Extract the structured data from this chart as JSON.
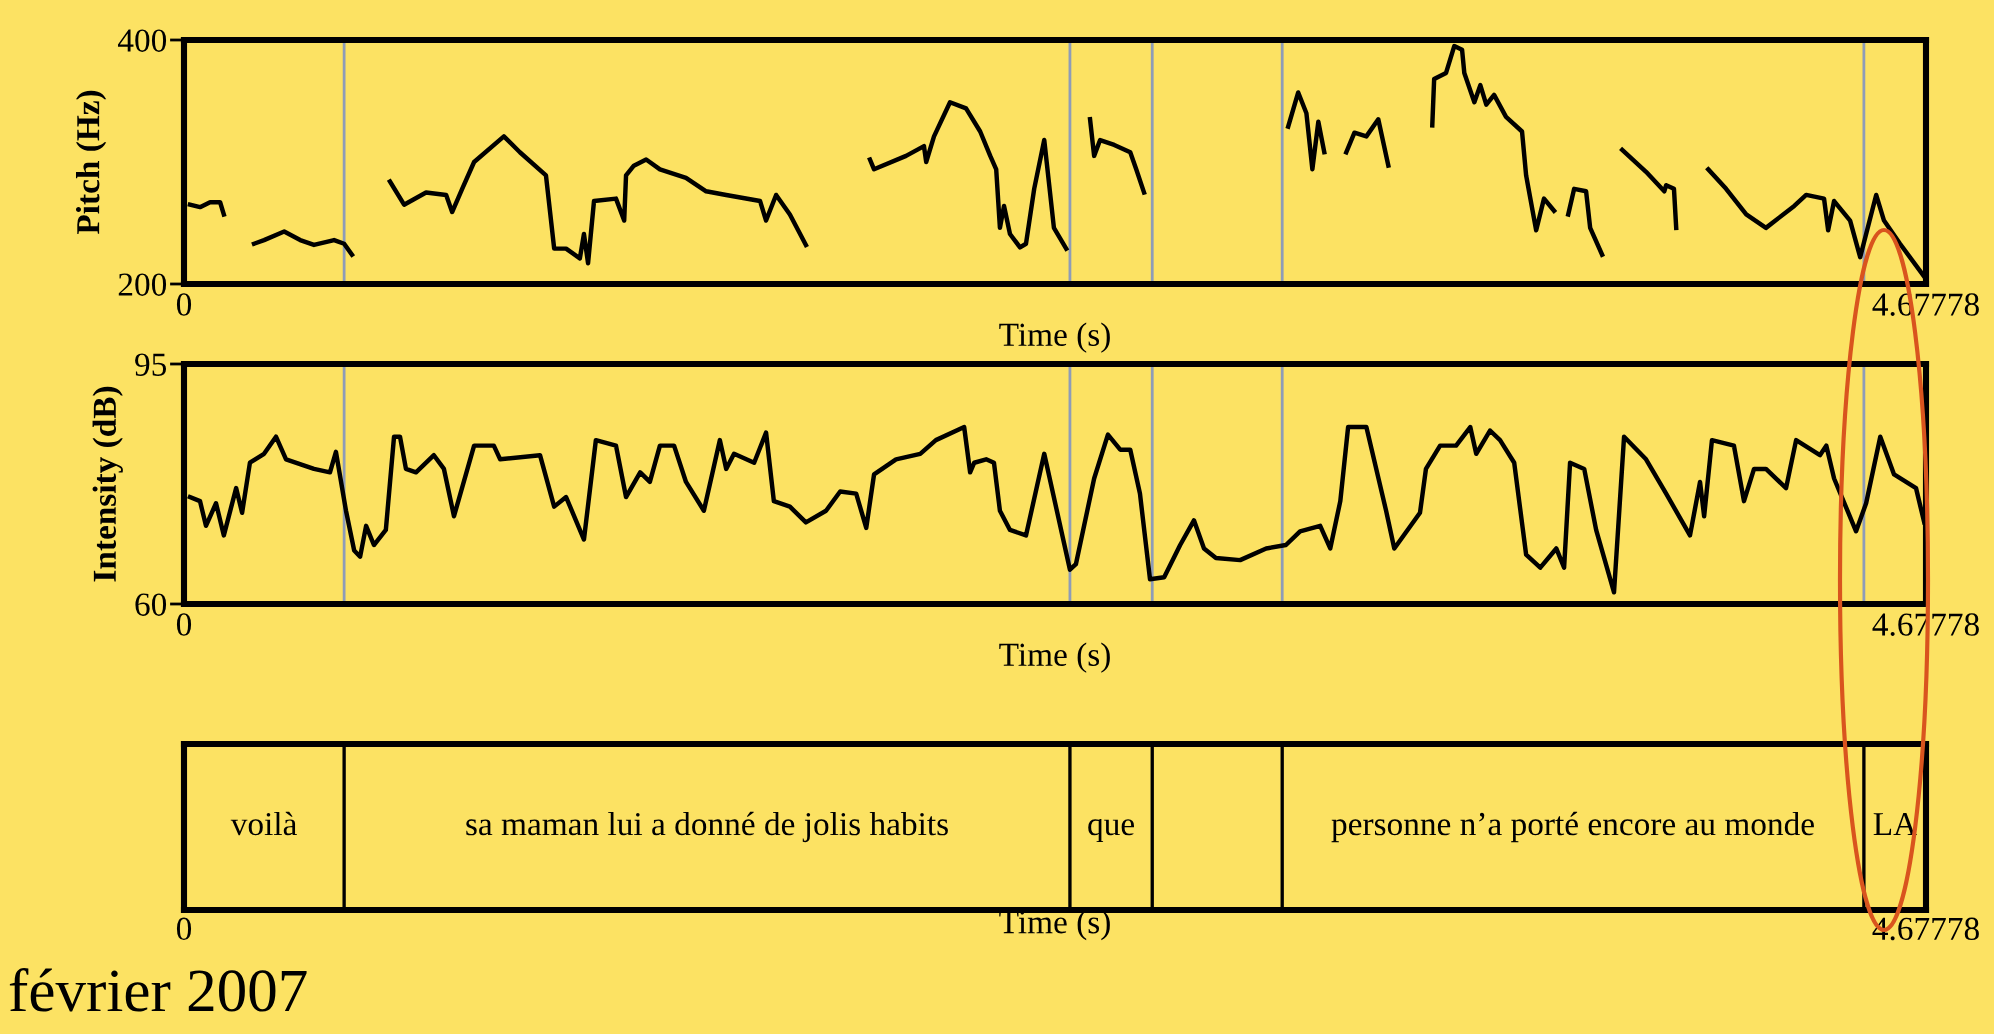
{
  "chart_data": [
    {
      "type": "line",
      "ylabel": "Pitch (Hz)",
      "xlabel": "Time (s)",
      "xlim": [
        0,
        4.67778
      ],
      "xticks": [
        0,
        4.67778
      ],
      "ylim": [
        200,
        400
      ],
      "yticks": [
        200,
        400
      ],
      "series": [
        {
          "color": "#000000",
          "x": [
            0.016,
            0.043,
            0.07,
            0.097,
            0.107
          ],
          "values": [
            265,
            263,
            267,
            267,
            257
          ]
        },
        {
          "color": "#000000",
          "x": [
            0.188,
            0.215,
            0.269,
            0.312,
            0.349,
            0.403,
            0.43,
            0.451
          ],
          "values": [
            233,
            236,
            243,
            236,
            232,
            236,
            233,
            224
          ]
        },
        {
          "color": "#000000",
          "x": [
            0.553,
            0.591,
            0.65,
            0.704,
            0.72,
            0.747,
            0.779,
            0.859,
            0.902,
            0.972,
            0.994,
            1.026,
            1.063,
            1.074,
            1.085,
            1.101,
            1.16,
            1.182,
            1.187,
            1.208,
            1.241,
            1.278,
            1.348,
            1.402,
            1.456,
            1.547,
            1.563,
            1.59,
            1.627,
            1.67
          ],
          "values": [
            284,
            265,
            275,
            273,
            259,
            278,
            300,
            321,
            308,
            289,
            229,
            229,
            221,
            241,
            217,
            268,
            270,
            252,
            289,
            297,
            302,
            294,
            287,
            276,
            273,
            268,
            252,
            273,
            257,
            232
          ]
        },
        {
          "color": "#000000",
          "x": [
            1.842,
            1.853,
            1.939,
            1.987,
            1.993,
            2.014,
            2.057,
            2.1,
            2.138,
            2.165,
            2.181,
            2.191,
            2.202,
            2.218,
            2.245,
            2.261,
            2.283,
            2.31,
            2.336,
            2.369
          ],
          "values": [
            302,
            294,
            305,
            313,
            300,
            321,
            349,
            344,
            325,
            305,
            294,
            246,
            264,
            241,
            230,
            233,
            278,
            318,
            246,
            229
          ]
        },
        {
          "color": "#000000",
          "x": [
            2.433,
            2.444,
            2.46,
            2.498,
            2.541,
            2.557,
            2.578
          ],
          "values": [
            335,
            305,
            318,
            314,
            308,
            294,
            275
          ]
        },
        {
          "color": "#000000",
          "x": [
            2.965,
            2.992,
            3.014,
            3.03,
            3.046,
            3.062
          ],
          "values": [
            329,
            357,
            340,
            294,
            333,
            308
          ]
        },
        {
          "color": "#000000",
          "x": [
            3.121,
            3.143,
            3.175,
            3.207,
            3.234
          ],
          "values": [
            308,
            324,
            321,
            335,
            297
          ]
        },
        {
          "color": "#000000",
          "x": [
            3.352,
            3.357,
            3.389,
            3.411,
            3.432,
            3.438,
            3.465,
            3.481,
            3.497,
            3.518,
            3.55,
            3.593,
            3.604,
            3.631,
            3.652,
            3.679
          ],
          "values": [
            330,
            368,
            373,
            395,
            392,
            373,
            349,
            363,
            347,
            355,
            337,
            325,
            289,
            244,
            270,
            260
          ]
        },
        {
          "color": "#000000",
          "x": [
            3.717,
            3.733,
            3.765,
            3.776,
            3.808
          ],
          "values": [
            257,
            278,
            276,
            246,
            224
          ]
        },
        {
          "color": "#000000",
          "x": [
            3.862,
            3.926,
            3.975,
            3.98,
            4.001,
            4.007
          ],
          "values": [
            310,
            292,
            276,
            281,
            278,
            246
          ]
        },
        {
          "color": "#000000",
          "x": [
            4.093,
            4.141,
            4.195,
            4.248,
            4.324,
            4.356,
            4.404,
            4.415,
            4.431,
            4.474,
            4.501,
            4.544,
            4.565,
            4.608,
            4.673
          ],
          "values": [
            294,
            278,
            257,
            246,
            264,
            273,
            270,
            244,
            268,
            252,
            222,
            273,
            252,
            233,
            206
          ]
        }
      ],
      "ref_lines": [
        {
          "axis": "x",
          "value": 0.43,
          "color": "#8e9cb8"
        },
        {
          "axis": "x",
          "value": 2.379,
          "color": "#8e9cb8"
        },
        {
          "axis": "x",
          "value": 2.6,
          "color": "#8e9cb8"
        },
        {
          "axis": "x",
          "value": 2.949,
          "color": "#8e9cb8"
        },
        {
          "axis": "x",
          "value": 4.511,
          "color": "#8e9cb8"
        }
      ]
    },
    {
      "type": "line",
      "ylabel": "Intensity (dB)",
      "xlabel": "Time (s)",
      "xlim": [
        0,
        4.67778
      ],
      "xticks": [
        0,
        4.67778
      ],
      "ylim": [
        60,
        95
      ],
      "yticks": [
        60,
        95
      ],
      "series": [
        {
          "color": "#000000",
          "x": [
            0.016,
            0.043,
            0.059,
            0.086,
            0.107,
            0.14,
            0.156,
            0.177,
            0.215,
            0.247,
            0.274,
            0.349,
            0.392,
            0.408,
            0.435,
            0.457,
            0.473,
            0.489,
            0.51,
            0.542,
            0.564,
            0.58,
            0.596,
            0.623,
            0.671,
            0.698,
            0.725,
            0.779,
            0.832,
            0.849,
            0.956,
            0.994,
            1.026,
            1.074,
            1.106,
            1.16,
            1.187,
            1.225,
            1.251,
            1.278,
            1.316,
            1.348,
            1.396,
            1.439,
            1.456,
            1.477,
            1.531,
            1.563,
            1.584,
            1.627,
            1.67,
            1.724,
            1.762,
            1.805,
            1.832,
            1.853,
            1.912,
            1.977,
            2.019,
            2.095,
            2.111,
            2.122,
            2.154,
            2.175,
            2.191,
            2.218,
            2.261,
            2.31,
            2.379,
            2.395,
            2.444,
            2.481,
            2.514,
            2.541,
            2.567,
            2.594,
            2.632,
            2.675,
            2.712,
            2.739,
            2.771,
            2.836,
            2.906,
            2.959,
            2.997,
            3.051,
            3.078,
            3.105,
            3.126,
            3.175,
            3.228,
            3.25,
            3.319,
            3.335,
            3.373,
            3.416,
            3.454,
            3.47,
            3.507,
            3.534,
            3.572,
            3.604,
            3.642,
            3.685,
            3.706,
            3.722,
            3.76,
            3.792,
            3.84,
            3.867,
            3.926,
            3.98,
            4.044,
            4.071,
            4.082,
            4.103,
            4.162,
            4.189,
            4.216,
            4.248,
            4.302,
            4.329,
            4.393,
            4.41,
            4.431,
            4.49,
            4.517,
            4.555,
            4.592,
            4.651,
            4.673
          ],
          "values": [
            75.6,
            75.0,
            71.4,
            74.7,
            70.0,
            76.9,
            73.3,
            80.6,
            81.9,
            84.4,
            81.1,
            79.7,
            79.2,
            82.2,
            73.6,
            67.8,
            66.9,
            71.4,
            68.6,
            70.8,
            84.4,
            84.4,
            79.7,
            79.2,
            81.7,
            79.7,
            72.8,
            83.1,
            83.1,
            81.1,
            81.7,
            74.2,
            75.6,
            69.4,
            83.9,
            83.1,
            75.6,
            79.2,
            77.8,
            83.1,
            83.1,
            77.8,
            73.6,
            83.9,
            79.7,
            81.9,
            80.6,
            85.0,
            75.0,
            74.2,
            71.9,
            73.6,
            76.4,
            76.1,
            71.1,
            78.9,
            81.1,
            81.9,
            83.9,
            85.8,
            79.2,
            80.6,
            81.1,
            80.6,
            73.6,
            70.8,
            70.0,
            81.9,
            65.0,
            65.8,
            78.3,
            84.7,
            82.5,
            82.5,
            76.1,
            63.6,
            63.9,
            68.6,
            72.2,
            68.1,
            66.7,
            66.4,
            68.1,
            68.6,
            70.6,
            71.4,
            68.1,
            75.0,
            85.8,
            85.8,
            73.6,
            68.1,
            73.3,
            79.7,
            83.1,
            83.1,
            85.8,
            81.9,
            85.3,
            83.9,
            80.6,
            67.2,
            65.3,
            68.1,
            65.3,
            80.6,
            79.7,
            70.8,
            61.7,
            84.4,
            81.1,
            76.1,
            70.0,
            77.8,
            72.8,
            83.9,
            83.1,
            75.0,
            79.7,
            79.7,
            76.9,
            83.9,
            81.7,
            83.1,
            78.3,
            70.6,
            74.7,
            84.4,
            78.9,
            76.9,
            71.9
          ]
        }
      ],
      "ref_lines": [
        {
          "axis": "x",
          "value": 0.43,
          "color": "#8e9cb8"
        },
        {
          "axis": "x",
          "value": 2.379,
          "color": "#8e9cb8"
        },
        {
          "axis": "x",
          "value": 2.6,
          "color": "#8e9cb8"
        },
        {
          "axis": "x",
          "value": 2.949,
          "color": "#8e9cb8"
        },
        {
          "axis": "x",
          "value": 4.511,
          "color": "#8e9cb8"
        }
      ]
    },
    {
      "type": "other",
      "xlabel": "Time (s)",
      "categories": [
        "voilà",
        "sa maman lui a donné de jolis habits",
        "que",
        null,
        "personne n’a porté encore au monde",
        "LA"
      ],
      "annotations": [
        "0",
        "4.67778",
        "février 2007"
      ]
    }
  ]
}
